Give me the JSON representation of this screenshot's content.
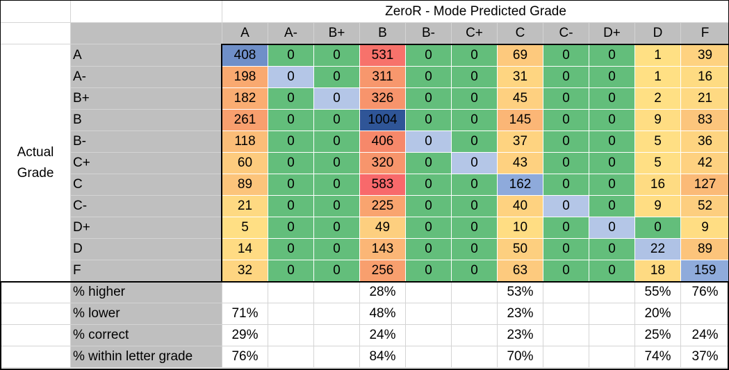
{
  "title": "ZeroR - Mode Predicted Grade",
  "columns": [
    "A",
    "A-",
    "B+",
    "B",
    "B-",
    "C+",
    "C",
    "C-",
    "D+",
    "D",
    "F"
  ],
  "side_label": [
    "Actual",
    "Grade"
  ],
  "rows": [
    {
      "label": "A",
      "values": [
        408,
        0,
        0,
        531,
        0,
        0,
        69,
        0,
        0,
        1,
        39
      ]
    },
    {
      "label": "A-",
      "values": [
        198,
        0,
        0,
        311,
        0,
        0,
        31,
        0,
        0,
        1,
        16
      ]
    },
    {
      "label": "B+",
      "values": [
        182,
        0,
        0,
        326,
        0,
        0,
        45,
        0,
        0,
        2,
        21
      ]
    },
    {
      "label": "B",
      "values": [
        261,
        0,
        0,
        1004,
        0,
        0,
        145,
        0,
        0,
        9,
        83
      ]
    },
    {
      "label": "B-",
      "values": [
        118,
        0,
        0,
        406,
        0,
        0,
        37,
        0,
        0,
        5,
        36
      ]
    },
    {
      "label": "C+",
      "values": [
        60,
        0,
        0,
        320,
        0,
        0,
        43,
        0,
        0,
        5,
        42
      ]
    },
    {
      "label": "C",
      "values": [
        89,
        0,
        0,
        583,
        0,
        0,
        162,
        0,
        0,
        16,
        127
      ]
    },
    {
      "label": "C-",
      "values": [
        21,
        0,
        0,
        225,
        0,
        0,
        40,
        0,
        0,
        9,
        52
      ]
    },
    {
      "label": "D+",
      "values": [
        5,
        0,
        0,
        49,
        0,
        0,
        10,
        0,
        0,
        0,
        9
      ]
    },
    {
      "label": "D",
      "values": [
        14,
        0,
        0,
        143,
        0,
        0,
        50,
        0,
        0,
        22,
        89
      ]
    },
    {
      "label": "F",
      "values": [
        32,
        0,
        0,
        256,
        0,
        0,
        63,
        0,
        0,
        18,
        159
      ]
    }
  ],
  "stats": [
    {
      "label": "% higher",
      "values": [
        "",
        "",
        "",
        "28%",
        "",
        "",
        "53%",
        "",
        "",
        "55%",
        "76%"
      ]
    },
    {
      "label": "% lower",
      "values": [
        "71%",
        "",
        "",
        "48%",
        "",
        "",
        "23%",
        "",
        "",
        "20%",
        ""
      ]
    },
    {
      "label": "% correct",
      "values": [
        "29%",
        "",
        "",
        "24%",
        "",
        "",
        "23%",
        "",
        "",
        "25%",
        "24%"
      ]
    },
    {
      "label": "% within letter grade",
      "values": [
        "76%",
        "",
        "",
        "84%",
        "",
        "",
        "70%",
        "",
        "",
        "74%",
        "37%"
      ]
    }
  ],
  "colors": {
    "zero_green": "#63be7b",
    "diagonal_blue": "#b4c6e7",
    "header_gray": "#bfbfbf"
  },
  "diagonal_scale": [
    [
      0,
      "#b4c6e7"
    ],
    [
      162,
      "#8eaadb"
    ],
    [
      408,
      "#6f8fc8"
    ],
    [
      1004,
      "#2f5597"
    ]
  ],
  "offdiag_scale": [
    [
      1,
      "#ffe084"
    ],
    [
      60,
      "#fdcb7e"
    ],
    [
      200,
      "#f9a870"
    ],
    [
      400,
      "#f6896a"
    ],
    [
      583,
      "#f8696b"
    ]
  ]
}
